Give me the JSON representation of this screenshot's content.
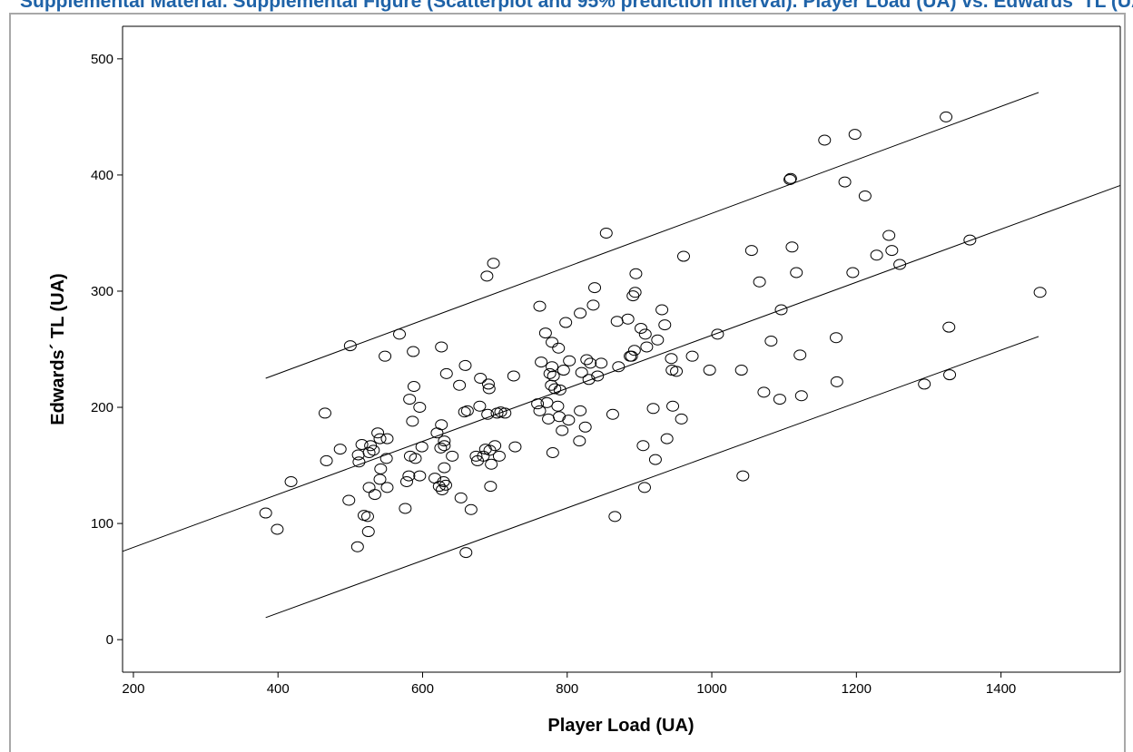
{
  "page": {
    "top_caption": "Supplemental Material. Supplemental Figure (Scatterplot and 95% prediction interval). Player Load (UA) vs. Edwards' TL (UA)"
  },
  "chart_data": {
    "type": "scatter",
    "title": "",
    "xlabel": "Player Load (UA)",
    "ylabel": "Edwards´ TL (UA)",
    "xlim": [
      185,
      1565
    ],
    "ylim": [
      -28,
      528
    ],
    "xticks": [
      200,
      400,
      600,
      800,
      1000,
      1200,
      1400
    ],
    "yticks": [
      0,
      100,
      200,
      300,
      400,
      500
    ],
    "grid": false,
    "legend": "none",
    "fit_line": {
      "x": [
        185,
        1565
      ],
      "y": [
        76,
        391
      ]
    },
    "upper_prediction": {
      "x": [
        383,
        1452
      ],
      "y": [
        225,
        471
      ]
    },
    "lower_prediction": {
      "x": [
        383,
        1452
      ],
      "y": [
        19,
        261
      ]
    },
    "points": [
      [
        383,
        109
      ],
      [
        399,
        95
      ],
      [
        418,
        136
      ],
      [
        465,
        195
      ],
      [
        467,
        154
      ],
      [
        486,
        164
      ],
      [
        500,
        253
      ],
      [
        498,
        120
      ],
      [
        510,
        80
      ],
      [
        511,
        159
      ],
      [
        512,
        153
      ],
      [
        516,
        168
      ],
      [
        519,
        107
      ],
      [
        524,
        106
      ],
      [
        525,
        93
      ],
      [
        526,
        131
      ],
      [
        526,
        161
      ],
      [
        528,
        167
      ],
      [
        532,
        163
      ],
      [
        534,
        125
      ],
      [
        538,
        178
      ],
      [
        541,
        138
      ],
      [
        541,
        173
      ],
      [
        542,
        147
      ],
      [
        548,
        244
      ],
      [
        550,
        156
      ],
      [
        551,
        173
      ],
      [
        551,
        131
      ],
      [
        568,
        263
      ],
      [
        576,
        113
      ],
      [
        578,
        136
      ],
      [
        581,
        141
      ],
      [
        582,
        207
      ],
      [
        583,
        158
      ],
      [
        586,
        188
      ],
      [
        587,
        248
      ],
      [
        588,
        218
      ],
      [
        590,
        156
      ],
      [
        596,
        141
      ],
      [
        596,
        200
      ],
      [
        599,
        166
      ],
      [
        617,
        139
      ],
      [
        620,
        178
      ],
      [
        623,
        132
      ],
      [
        625,
        165
      ],
      [
        626,
        252
      ],
      [
        626,
        185
      ],
      [
        627,
        129
      ],
      [
        629,
        136
      ],
      [
        630,
        148
      ],
      [
        630,
        167
      ],
      [
        630,
        171
      ],
      [
        632,
        133
      ],
      [
        633,
        229
      ],
      [
        641,
        158
      ],
      [
        651,
        219
      ],
      [
        653,
        122
      ],
      [
        658,
        196
      ],
      [
        659,
        236
      ],
      [
        660,
        75
      ],
      [
        662,
        197
      ],
      [
        667,
        112
      ],
      [
        674,
        158
      ],
      [
        676,
        154
      ],
      [
        679,
        201
      ],
      [
        680,
        225
      ],
      [
        684,
        158
      ],
      [
        687,
        164
      ],
      [
        689,
        313
      ],
      [
        690,
        194
      ],
      [
        691,
        220
      ],
      [
        692,
        216
      ],
      [
        693,
        163
      ],
      [
        694,
        132
      ],
      [
        695,
        151
      ],
      [
        698,
        324
      ],
      [
        700,
        167
      ],
      [
        703,
        195
      ],
      [
        706,
        158
      ],
      [
        708,
        196
      ],
      [
        714,
        195
      ],
      [
        726,
        227
      ],
      [
        728,
        166
      ],
      [
        759,
        203
      ],
      [
        762,
        197
      ],
      [
        762,
        287
      ],
      [
        764,
        239
      ],
      [
        770,
        264
      ],
      [
        772,
        204
      ],
      [
        774,
        190
      ],
      [
        776,
        229
      ],
      [
        778,
        219
      ],
      [
        779,
        235
      ],
      [
        779,
        256
      ],
      [
        780,
        161
      ],
      [
        781,
        227
      ],
      [
        783,
        216
      ],
      [
        787,
        201
      ],
      [
        788,
        251
      ],
      [
        789,
        192
      ],
      [
        790,
        215
      ],
      [
        793,
        180
      ],
      [
        795,
        232
      ],
      [
        798,
        273
      ],
      [
        802,
        189
      ],
      [
        803,
        240
      ],
      [
        817,
        171
      ],
      [
        818,
        197
      ],
      [
        818,
        281
      ],
      [
        820,
        230
      ],
      [
        825,
        183
      ],
      [
        827,
        241
      ],
      [
        830,
        224
      ],
      [
        832,
        238
      ],
      [
        836,
        288
      ],
      [
        838,
        303
      ],
      [
        842,
        227
      ],
      [
        847,
        238
      ],
      [
        854,
        350
      ],
      [
        863,
        194
      ],
      [
        866,
        106
      ],
      [
        869,
        274
      ],
      [
        871,
        235
      ],
      [
        884,
        276
      ],
      [
        887,
        244
      ],
      [
        889,
        244
      ],
      [
        891,
        296
      ],
      [
        893,
        249
      ],
      [
        894,
        299
      ],
      [
        895,
        315
      ],
      [
        902,
        268
      ],
      [
        905,
        167
      ],
      [
        907,
        131
      ],
      [
        908,
        263
      ],
      [
        910,
        252
      ],
      [
        919,
        199
      ],
      [
        922,
        155
      ],
      [
        925,
        258
      ],
      [
        931,
        284
      ],
      [
        935,
        271
      ],
      [
        938,
        173
      ],
      [
        944,
        242
      ],
      [
        945,
        232
      ],
      [
        946,
        201
      ],
      [
        951,
        231
      ],
      [
        958,
        190
      ],
      [
        961,
        330
      ],
      [
        973,
        244
      ],
      [
        997,
        232
      ],
      [
        1008,
        263
      ],
      [
        1041,
        232
      ],
      [
        1043,
        141
      ],
      [
        1055,
        335
      ],
      [
        1066,
        308
      ],
      [
        1072,
        213
      ],
      [
        1082,
        257
      ],
      [
        1094,
        207
      ],
      [
        1096,
        284
      ],
      [
        1108,
        396
      ],
      [
        1109,
        397
      ],
      [
        1111,
        338
      ],
      [
        1117,
        316
      ],
      [
        1122,
        245
      ],
      [
        1124,
        210
      ],
      [
        1156,
        430
      ],
      [
        1172,
        260
      ],
      [
        1173,
        222
      ],
      [
        1184,
        394
      ],
      [
        1195,
        316
      ],
      [
        1198,
        435
      ],
      [
        1212,
        382
      ],
      [
        1228,
        331
      ],
      [
        1245,
        348
      ],
      [
        1249,
        335
      ],
      [
        1260,
        323
      ],
      [
        1294,
        220
      ],
      [
        1324,
        450
      ],
      [
        1328,
        269
      ],
      [
        1329,
        228
      ],
      [
        1357,
        344
      ],
      [
        1454,
        299
      ]
    ]
  }
}
